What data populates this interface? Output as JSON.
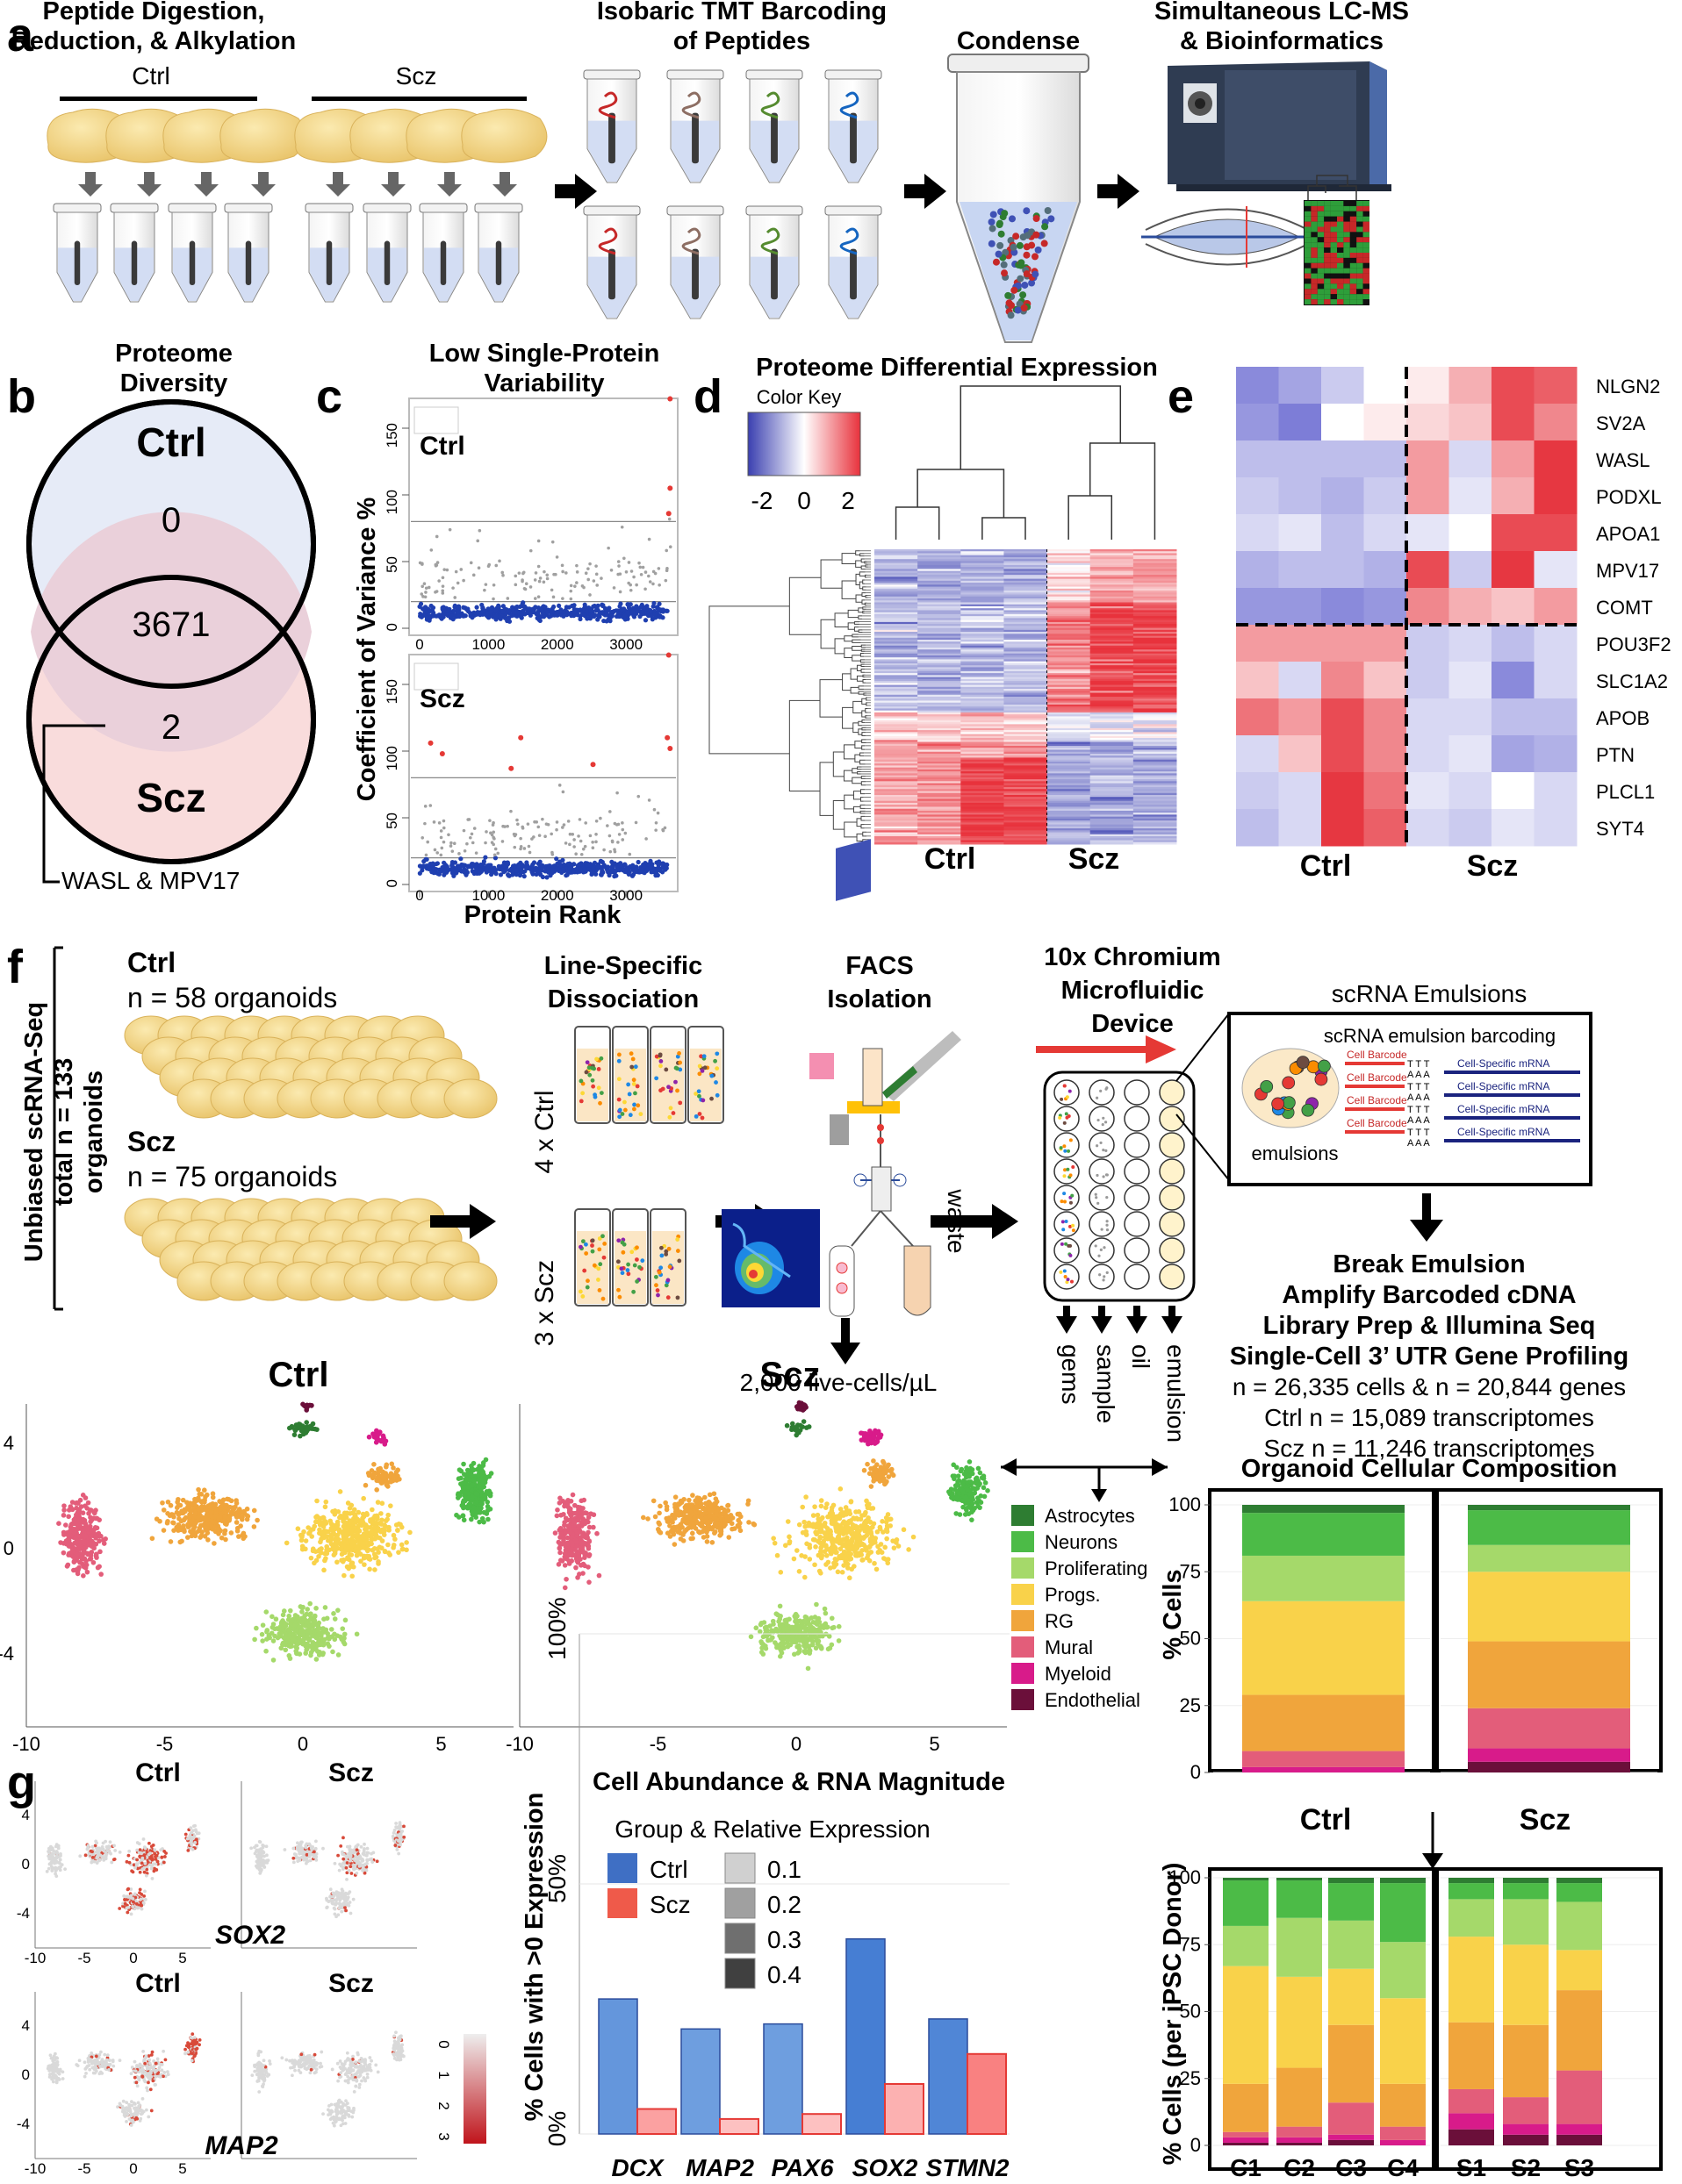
{
  "panel_a": {
    "label": "a",
    "step1_title": [
      "Peptide Digestion,",
      "Reduction, & Alkylation"
    ],
    "group_ctrl": "Ctrl",
    "group_scz": "Scz",
    "step2_title": [
      "Isobaric TMT Barcoding",
      "of Peptides"
    ],
    "step3_title": "Condense",
    "step4_title": [
      "Simultaneous LC-MS",
      "& Bioinformatics"
    ]
  },
  "panel_b": {
    "label": "b",
    "title": [
      "Proteome",
      "Diversity"
    ],
    "ctrl": "Ctrl",
    "scz": "Scz",
    "ctrl_only": "0",
    "shared": "3671",
    "scz_only": "2",
    "note": "WASL & MPV17"
  },
  "panel_c": {
    "label": "c",
    "title": [
      "Low Single-Protein",
      "Variability"
    ],
    "ylabel": "Coefficient of Variance %",
    "xlabel": "Protein Rank",
    "sub_ctrl": "Ctrl",
    "sub_scz": "Scz",
    "yticks": [
      "0",
      "50",
      "100",
      "150"
    ],
    "xticks": [
      "0",
      "1000",
      "2000",
      "3000"
    ]
  },
  "panel_d": {
    "label": "d",
    "title": "Proteome Differential Expression",
    "color_key": "Color Key",
    "key_ticks": [
      "-2",
      "0",
      "2"
    ],
    "ctrl": "Ctrl",
    "scz": "Scz"
  },
  "panel_e": {
    "label": "e",
    "genes": [
      "NLGN2",
      "SV2A",
      "WASL",
      "PODXL",
      "APOA1",
      "MPV17",
      "COMT",
      "POU3F2",
      "SLC1A2",
      "APOB",
      "PTN",
      "PLCL1",
      "SYT4"
    ],
    "ctrl": "Ctrl",
    "scz": "Scz"
  },
  "panel_f": {
    "label": "f",
    "side_label": [
      "Unbiased scRNA-Seq",
      "total n = 133",
      "organoids"
    ],
    "ctrl": "Ctrl",
    "ctrl_n": "n = 58 organoids",
    "scz": "Scz",
    "scz_n": "n = 75 organoids",
    "dissoc_title": [
      "Line-Specific",
      "Dissociation"
    ],
    "ctrl_lines": "4 x Ctrl",
    "scz_lines": "3 x Scz",
    "facs_title": [
      "FACS",
      "Isolation"
    ],
    "waste": "waste",
    "density": "2,000 live-cells/µL",
    "chromium_title": [
      "10x Chromium",
      "Microfluidic",
      "Device"
    ],
    "inlets": [
      "gems",
      "sample",
      "oil",
      "emulsion"
    ],
    "emulsions_title": "scRNA Emulsions",
    "barcoding_title": "scRNA emulsion barcoding",
    "cell_barcode": "Cell Barcode",
    "cell_mrna": "Cell-Specific mRNA",
    "emulsions": "emulsions",
    "steps": [
      "Break Emulsion",
      "Amplify Barcoded cDNA",
      "Library Prep & Illumina Seq",
      "Single-Cell 3’ UTR Gene Profiling"
    ],
    "counts": [
      "n = 26,335 cells & n = 20,844 genes",
      "Ctrl n = 15,089 transcriptomes",
      "Scz n = 11,246 transcriptomes"
    ],
    "umap_ctrl": "Ctrl",
    "umap_scz": "Scz",
    "umap_yticks": [
      "4",
      "0",
      "-4"
    ],
    "umap_xticks": [
      "-10",
      "-5",
      "0",
      "5"
    ],
    "legend": [
      {
        "name": "Astrocytes",
        "color": "#2e7d32"
      },
      {
        "name": "Neurons",
        "color": "#4cbb47"
      },
      {
        "name": "Proliferating",
        "color": "#a5d96a"
      },
      {
        "name": "Progs.",
        "color": "#f9d24a"
      },
      {
        "name": "RG",
        "color": "#f0a53c"
      },
      {
        "name": "Mural",
        "color": "#e35d7a"
      },
      {
        "name": "Myeloid",
        "color": "#d81b8a"
      },
      {
        "name": "Endothelial",
        "color": "#6b0f3a"
      }
    ],
    "comp_title": "Organoid Cellular Composition",
    "comp_ylabel": "% Cells",
    "comp_yticks": [
      "100",
      "75",
      "50",
      "25",
      "0"
    ],
    "comp_ctrl": "Ctrl",
    "comp_scz": "Scz",
    "donor_ylabel": "% Cells (per iPSC Donor)",
    "donor_yticks": [
      "100",
      "75",
      "50",
      "25",
      "0"
    ]
  },
  "panel_g": {
    "label": "g",
    "ctrl": "Ctrl",
    "scz": "Scz",
    "gene1": "SOX2",
    "gene2": "MAP2",
    "scale_ticks": [
      "0",
      "1",
      "2",
      "3"
    ],
    "yticks": [
      "4",
      "0",
      "-4"
    ],
    "xticks": [
      "-10",
      "-5",
      "0",
      "5"
    ],
    "bar_title": "Cell Abundance & RNA Magnitude",
    "legend_title": "Group & Relative Expression",
    "legend_groups": [
      "Ctrl",
      "Scz"
    ],
    "legend_levels": [
      "0.1",
      "0.2",
      "0.3",
      "0.4"
    ],
    "ylabel": "% Cells with >0 Expression",
    "yticks_pct": [
      "0%",
      "50%",
      "100%"
    ]
  },
  "chart_data": [
    {
      "type": "bar",
      "title": "Organoid Cellular Composition",
      "ylabel": "% Cells",
      "stacked": true,
      "ylim": [
        0,
        100
      ],
      "categories": [
        "Ctrl",
        "Scz"
      ],
      "series": [
        {
          "name": "Endothelial",
          "values": [
            0,
            4
          ]
        },
        {
          "name": "Myeloid",
          "values": [
            2,
            5
          ]
        },
        {
          "name": "Mural",
          "values": [
            6,
            15
          ]
        },
        {
          "name": "RG",
          "values": [
            21,
            25
          ]
        },
        {
          "name": "Progs.",
          "values": [
            35,
            26
          ]
        },
        {
          "name": "Proliferating",
          "values": [
            17,
            10
          ]
        },
        {
          "name": "Neurons",
          "values": [
            16,
            13
          ]
        },
        {
          "name": "Astrocytes",
          "values": [
            3,
            2
          ]
        }
      ]
    },
    {
      "type": "bar",
      "ylabel": "% Cells (per iPSC Donor)",
      "stacked": true,
      "ylim": [
        0,
        100
      ],
      "categories": [
        "C1",
        "C2",
        "C3",
        "C4",
        "S1",
        "S2",
        "S3"
      ],
      "series": [
        {
          "name": "Endothelial",
          "values": [
            1,
            1,
            2,
            0,
            6,
            4,
            4
          ]
        },
        {
          "name": "Myeloid",
          "values": [
            2,
            2,
            2,
            2,
            6,
            4,
            4
          ]
        },
        {
          "name": "Mural",
          "values": [
            2,
            4,
            12,
            5,
            9,
            10,
            20
          ]
        },
        {
          "name": "RG",
          "values": [
            18,
            22,
            29,
            16,
            25,
            27,
            30
          ]
        },
        {
          "name": "Progs.",
          "values": [
            44,
            34,
            21,
            32,
            32,
            30,
            15
          ]
        },
        {
          "name": "Proliferating",
          "values": [
            15,
            22,
            18,
            21,
            14,
            17,
            18
          ]
        },
        {
          "name": "Neurons",
          "values": [
            17,
            14,
            14,
            22,
            6,
            6,
            7
          ]
        },
        {
          "name": "Astrocytes",
          "values": [
            1,
            1,
            2,
            2,
            2,
            2,
            2
          ]
        }
      ]
    },
    {
      "type": "bar",
      "title": "Cell Abundance & RNA Magnitude",
      "ylabel": "% Cells with >0 Expression",
      "ylim": [
        0,
        100
      ],
      "categories": [
        "DCX",
        "MAP2",
        "PAX6",
        "SOX2",
        "STMN2"
      ],
      "series": [
        {
          "name": "Ctrl",
          "values": [
            27,
            21,
            22,
            39,
            23
          ]
        },
        {
          "name": "Scz",
          "values": [
            5,
            3,
            4,
            10,
            16
          ]
        }
      ],
      "relative_expression": {
        "Ctrl": [
          0.25,
          0.2,
          0.2,
          0.4,
          0.35
        ],
        "Scz": [
          0.2,
          0.1,
          0.1,
          0.15,
          0.3
        ]
      }
    }
  ]
}
